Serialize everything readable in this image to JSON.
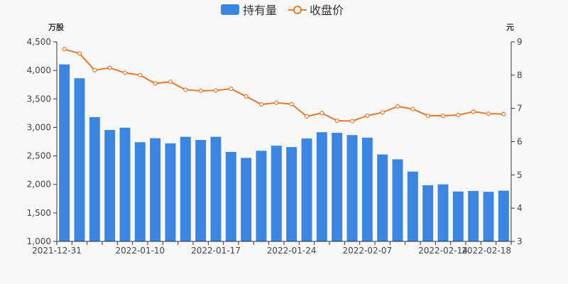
{
  "chart_data": {
    "type": "bar+line",
    "legend": {
      "position": "top-center",
      "bar_label": "持有量",
      "line_label": "收盘价"
    },
    "left_axis": {
      "unit": "万股",
      "min": 1000,
      "max": 4500,
      "ticks": [
        "1,000",
        "1,500",
        "2,000",
        "2,500",
        "3,000",
        "3,500",
        "4,000",
        "4,500"
      ]
    },
    "right_axis": {
      "unit": "元",
      "min": 3,
      "max": 9,
      "ticks": [
        "3",
        "4",
        "5",
        "6",
        "7",
        "8",
        "9"
      ]
    },
    "x_tick_labels": [
      "2021-12-31",
      "2022-01-10",
      "2022-01-17",
      "2022-01-24",
      "2022-02-07",
      "2022-02-14",
      "2022-02-18"
    ],
    "x_tick_indices": [
      0,
      5,
      10,
      15,
      20,
      25,
      29
    ],
    "bar_values": [
      4105,
      3862,
      3180,
      2955,
      2995,
      2740,
      2810,
      2720,
      2835,
      2780,
      2835,
      2570,
      2465,
      2590,
      2680,
      2655,
      2805,
      2915,
      2905,
      2865,
      2820,
      2525,
      2440,
      2225,
      1985,
      2000,
      1875,
      1885,
      1870,
      1890
    ],
    "line_values": [
      8.78,
      8.65,
      8.15,
      8.22,
      8.07,
      8.0,
      7.75,
      7.8,
      7.56,
      7.53,
      7.54,
      7.59,
      7.36,
      7.12,
      7.17,
      7.13,
      6.76,
      6.86,
      6.63,
      6.62,
      6.78,
      6.88,
      7.06,
      6.98,
      6.78,
      6.78,
      6.8,
      6.9,
      6.84,
      6.83
    ],
    "colors": {
      "bar": "#3b86e2",
      "line": "#e87a2e",
      "axis": "#333333",
      "background": "#f8f8f8"
    }
  }
}
